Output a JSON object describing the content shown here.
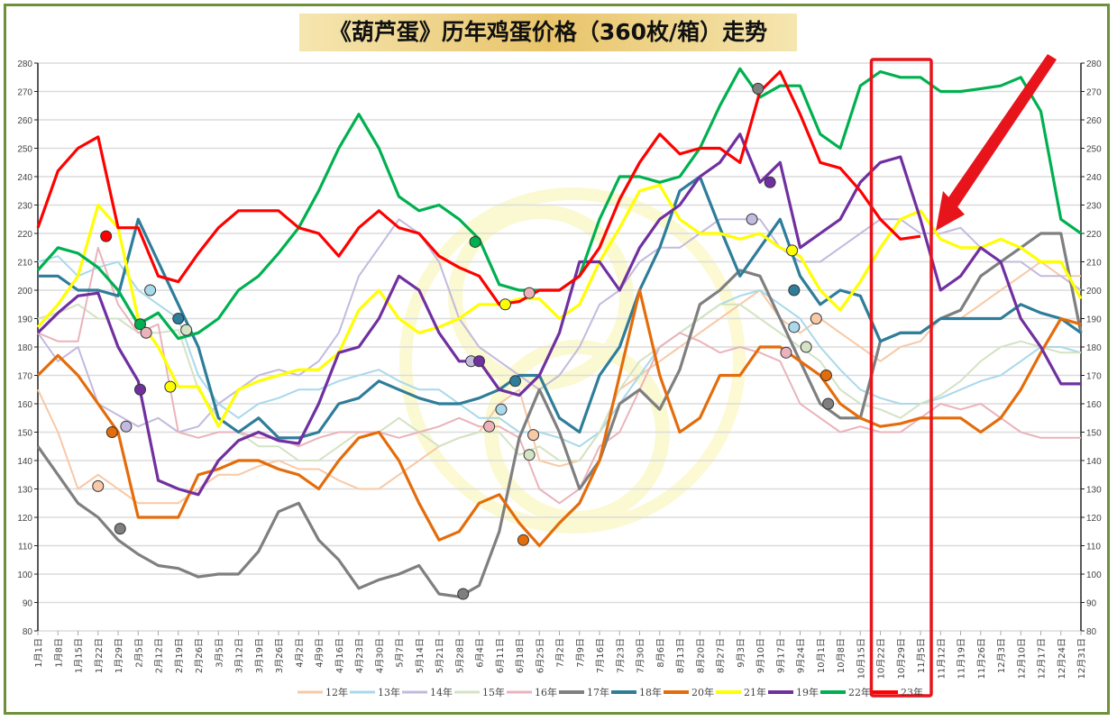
{
  "chart_data": {
    "type": "line",
    "title": "《葫芦蛋》历年鸡蛋价格（360枚/箱）走势",
    "ylim": [
      80,
      280
    ],
    "yticks": [
      80,
      90,
      100,
      110,
      120,
      130,
      140,
      150,
      160,
      170,
      180,
      190,
      200,
      210,
      220,
      230,
      240,
      250,
      260,
      270,
      280
    ],
    "grid": true,
    "legend_position": "bottom",
    "categories": [
      "1月1日",
      "1月8日",
      "1月15日",
      "1月22日",
      "1月29日",
      "2月5日",
      "2月12日",
      "2月19日",
      "2月26日",
      "3月5日",
      "3月12日",
      "3月19日",
      "3月26日",
      "4月2日",
      "4月9日",
      "4月16日",
      "4月23日",
      "4月30日",
      "5月7日",
      "5月14日",
      "5月21日",
      "5月28日",
      "6月4日",
      "6月11日",
      "6月18日",
      "6月25日",
      "7月2日",
      "7月9日",
      "7月16日",
      "7月23日",
      "7月30日",
      "8月6日",
      "8月13日",
      "8月20日",
      "8月27日",
      "9月3日",
      "9月10日",
      "9月17日",
      "9月24日",
      "10月1日",
      "10月8日",
      "10月15日",
      "10月22日",
      "10月29日",
      "11月5日",
      "11月12日",
      "11月19日",
      "11月26日",
      "12月3日",
      "12月10日",
      "12月17日",
      "12月24日",
      "12月31日"
    ],
    "series": [
      {
        "name": "12年",
        "color": "#f7c9a6",
        "bold": false,
        "values": [
          165,
          150,
          130,
          135,
          130,
          125,
          125,
          125,
          130,
          135,
          135,
          138,
          140,
          137,
          137,
          133,
          130,
          130,
          135,
          140,
          145,
          148,
          150,
          160,
          165,
          140,
          138,
          140,
          150,
          165,
          170,
          175,
          180,
          185,
          190,
          195,
          200,
          190,
          185,
          190,
          185,
          180,
          175,
          180,
          182,
          190,
          190,
          195,
          200,
          205,
          210,
          205,
          205
        ]
      },
      {
        "name": "13年",
        "color": "#a9d9ea",
        "bold": false,
        "values": [
          210,
          212,
          205,
          208,
          210,
          200,
          195,
          190,
          170,
          160,
          155,
          160,
          162,
          165,
          165,
          168,
          170,
          172,
          168,
          165,
          165,
          160,
          155,
          155,
          150,
          150,
          148,
          145,
          150,
          160,
          170,
          180,
          185,
          190,
          195,
          198,
          200,
          195,
          190,
          180,
          172,
          165,
          162,
          160,
          160,
          162,
          165,
          168,
          170,
          175,
          180,
          180,
          178
        ]
      },
      {
        "name": "14年",
        "color": "#c3bade",
        "bold": false,
        "values": [
          185,
          175,
          180,
          160,
          156,
          152,
          155,
          150,
          152,
          160,
          165,
          170,
          172,
          170,
          175,
          185,
          205,
          215,
          225,
          220,
          210,
          190,
          180,
          175,
          170,
          165,
          170,
          180,
          195,
          200,
          210,
          215,
          215,
          220,
          225,
          225,
          225,
          215,
          210,
          210,
          215,
          220,
          225,
          225,
          220,
          220,
          222,
          215,
          210,
          210,
          205,
          205,
          200
        ]
      },
      {
        "name": "15年",
        "color": "#d3e3c3",
        "bold": false,
        "values": [
          190,
          192,
          195,
          190,
          190,
          185,
          185,
          186,
          165,
          155,
          150,
          145,
          145,
          140,
          140,
          145,
          150,
          150,
          155,
          150,
          145,
          148,
          150,
          150,
          142,
          145,
          140,
          140,
          150,
          165,
          175,
          180,
          185,
          190,
          195,
          195,
          190,
          185,
          180,
          175,
          165,
          160,
          158,
          155,
          160,
          163,
          168,
          175,
          180,
          182,
          180,
          178,
          178
        ]
      },
      {
        "name": "16年",
        "color": "#eab3bb",
        "bold": false,
        "values": [
          185,
          182,
          182,
          215,
          195,
          185,
          188,
          150,
          148,
          150,
          150,
          148,
          148,
          145,
          148,
          150,
          150,
          150,
          148,
          150,
          152,
          155,
          152,
          152,
          148,
          130,
          125,
          130,
          145,
          150,
          165,
          180,
          185,
          182,
          178,
          180,
          178,
          175,
          160,
          155,
          150,
          152,
          150,
          150,
          155,
          160,
          158,
          160,
          155,
          150,
          148,
          148,
          148
        ]
      },
      {
        "name": "17年",
        "color": "#7f7f7f",
        "bold": true,
        "values": [
          145,
          135,
          125,
          120,
          112,
          107,
          103,
          102,
          99,
          100,
          100,
          108,
          122,
          125,
          112,
          105,
          95,
          98,
          100,
          103,
          93,
          92,
          96,
          115,
          148,
          165,
          150,
          130,
          140,
          160,
          165,
          158,
          172,
          195,
          200,
          207,
          205,
          190,
          175,
          160,
          155,
          155,
          182,
          185,
          185,
          190,
          193,
          205,
          210,
          215,
          220,
          220,
          185
        ]
      },
      {
        "name": "18年",
        "color": "#2e7d99",
        "bold": true,
        "values": [
          205,
          205,
          200,
          200,
          198,
          225,
          210,
          195,
          180,
          155,
          150,
          155,
          148,
          148,
          150,
          160,
          162,
          168,
          165,
          162,
          160,
          160,
          162,
          165,
          170,
          170,
          155,
          150,
          170,
          180,
          200,
          215,
          235,
          240,
          222,
          205,
          215,
          225,
          205,
          195,
          200,
          198,
          182,
          185,
          185,
          190,
          190,
          190,
          190,
          195,
          192,
          190,
          185
        ]
      },
      {
        "name": "20年",
        "color": "#e46c0a",
        "bold": true,
        "values": [
          170,
          177,
          170,
          160,
          150,
          120,
          120,
          120,
          135,
          137,
          140,
          140,
          137,
          135,
          130,
          140,
          148,
          150,
          140,
          125,
          112,
          115,
          125,
          128,
          118,
          110,
          118,
          125,
          140,
          170,
          200,
          170,
          150,
          155,
          170,
          170,
          180,
          180,
          175,
          170,
          160,
          155,
          152,
          153,
          155,
          155,
          155,
          150,
          155,
          165,
          178,
          190,
          188
        ]
      },
      {
        "name": "21年",
        "color": "#ffff00",
        "bold": true,
        "values": [
          187,
          195,
          205,
          230,
          222,
          190,
          180,
          166,
          166,
          152,
          165,
          168,
          170,
          172,
          172,
          178,
          193,
          200,
          190,
          185,
          187,
          190,
          195,
          195,
          197,
          197,
          190,
          195,
          210,
          222,
          235,
          237,
          225,
          220,
          220,
          218,
          220,
          215,
          212,
          200,
          193,
          203,
          215,
          225,
          228,
          218,
          215,
          215,
          218,
          215,
          210,
          210,
          197
        ]
      },
      {
        "name": "19年",
        "color": "#7030a0",
        "bold": true,
        "values": [
          185,
          192,
          198,
          199,
          180,
          168,
          133,
          130,
          128,
          140,
          147,
          150,
          147,
          146,
          160,
          178,
          180,
          190,
          205,
          200,
          185,
          175,
          175,
          165,
          163,
          170,
          185,
          210,
          210,
          200,
          215,
          225,
          230,
          240,
          245,
          255,
          238,
          245,
          215,
          220,
          225,
          238,
          245,
          247,
          225,
          200,
          205,
          215,
          210,
          190,
          180,
          167,
          167
        ]
      },
      {
        "name": "22年",
        "color": "#00b050",
        "bold": true,
        "values": [
          207,
          215,
          213,
          208,
          200,
          188,
          192,
          183,
          185,
          190,
          200,
          205,
          213,
          222,
          235,
          250,
          262,
          250,
          233,
          228,
          230,
          225,
          218,
          202,
          200,
          200,
          200,
          205,
          225,
          240,
          240,
          238,
          240,
          250,
          265,
          278,
          268,
          272,
          272,
          255,
          250,
          272,
          277,
          275,
          275,
          270,
          270,
          271,
          272,
          275,
          263,
          225,
          220
        ]
      },
      {
        "name": "23年",
        "color": "#ff0000",
        "bold": true,
        "values": [
          222,
          242,
          250,
          254,
          222,
          222,
          205,
          203,
          213,
          222,
          228,
          228,
          228,
          222,
          220,
          212,
          222,
          228,
          222,
          220,
          212,
          208,
          205,
          195,
          196,
          200,
          200,
          205,
          215,
          232,
          245,
          255,
          248,
          250,
          250,
          245,
          270,
          277,
          262,
          245,
          243,
          235,
          225,
          218,
          219,
          null,
          null,
          null,
          null,
          null,
          null,
          null,
          null
        ]
      }
    ],
    "markers": [
      {
        "series": "23年",
        "week": 3.4,
        "value": 219
      },
      {
        "series": "13年",
        "week": 5.6,
        "value": 200
      },
      {
        "series": "22年",
        "week": 5.1,
        "value": 188
      },
      {
        "series": "16年",
        "week": 5.4,
        "value": 185
      },
      {
        "series": "18年",
        "week": 7.0,
        "value": 190
      },
      {
        "series": "15年",
        "week": 7.4,
        "value": 186
      },
      {
        "series": "19年",
        "week": 5.1,
        "value": 165
      },
      {
        "series": "21年",
        "week": 6.6,
        "value": 166
      },
      {
        "series": "14年",
        "week": 4.4,
        "value": 152
      },
      {
        "series": "20年",
        "week": 3.7,
        "value": 150
      },
      {
        "series": "12年",
        "week": 3.0,
        "value": 131
      },
      {
        "series": "17年",
        "week": 4.1,
        "value": 116
      },
      {
        "series": "22年",
        "week": 21.8,
        "value": 217
      },
      {
        "series": "16年",
        "week": 24.5,
        "value": 199
      },
      {
        "series": "21年",
        "week": 23.3,
        "value": 195
      },
      {
        "series": "14年",
        "week": 21.6,
        "value": 175
      },
      {
        "series": "19年",
        "week": 22.0,
        "value": 175
      },
      {
        "series": "18年",
        "week": 23.8,
        "value": 168
      },
      {
        "series": "13年",
        "week": 23.1,
        "value": 158
      },
      {
        "series": "16年",
        "week": 22.5,
        "value": 152
      },
      {
        "series": "12年",
        "week": 24.7,
        "value": 149
      },
      {
        "series": "15年",
        "week": 24.5,
        "value": 142
      },
      {
        "series": "20年",
        "week": 24.2,
        "value": 112
      },
      {
        "series": "17年",
        "week": 21.2,
        "value": 93
      },
      {
        "series": "17年",
        "week": 35.9,
        "value": 271
      },
      {
        "series": "19年",
        "week": 36.5,
        "value": 238
      },
      {
        "series": "14年",
        "week": 35.6,
        "value": 225
      },
      {
        "series": "21年",
        "week": 37.6,
        "value": 214
      },
      {
        "series": "18年",
        "week": 37.7,
        "value": 200
      },
      {
        "series": "12年",
        "week": 38.8,
        "value": 190
      },
      {
        "series": "13年",
        "week": 37.7,
        "value": 187
      },
      {
        "series": "15年",
        "week": 38.3,
        "value": 180
      },
      {
        "series": "16年",
        "week": 37.3,
        "value": 178
      },
      {
        "series": "20年",
        "week": 39.3,
        "value": 170
      },
      {
        "series": "17年",
        "week": 39.4,
        "value": 160
      }
    ],
    "highlight_range": [
      "10月22日",
      "11月5日"
    ]
  }
}
